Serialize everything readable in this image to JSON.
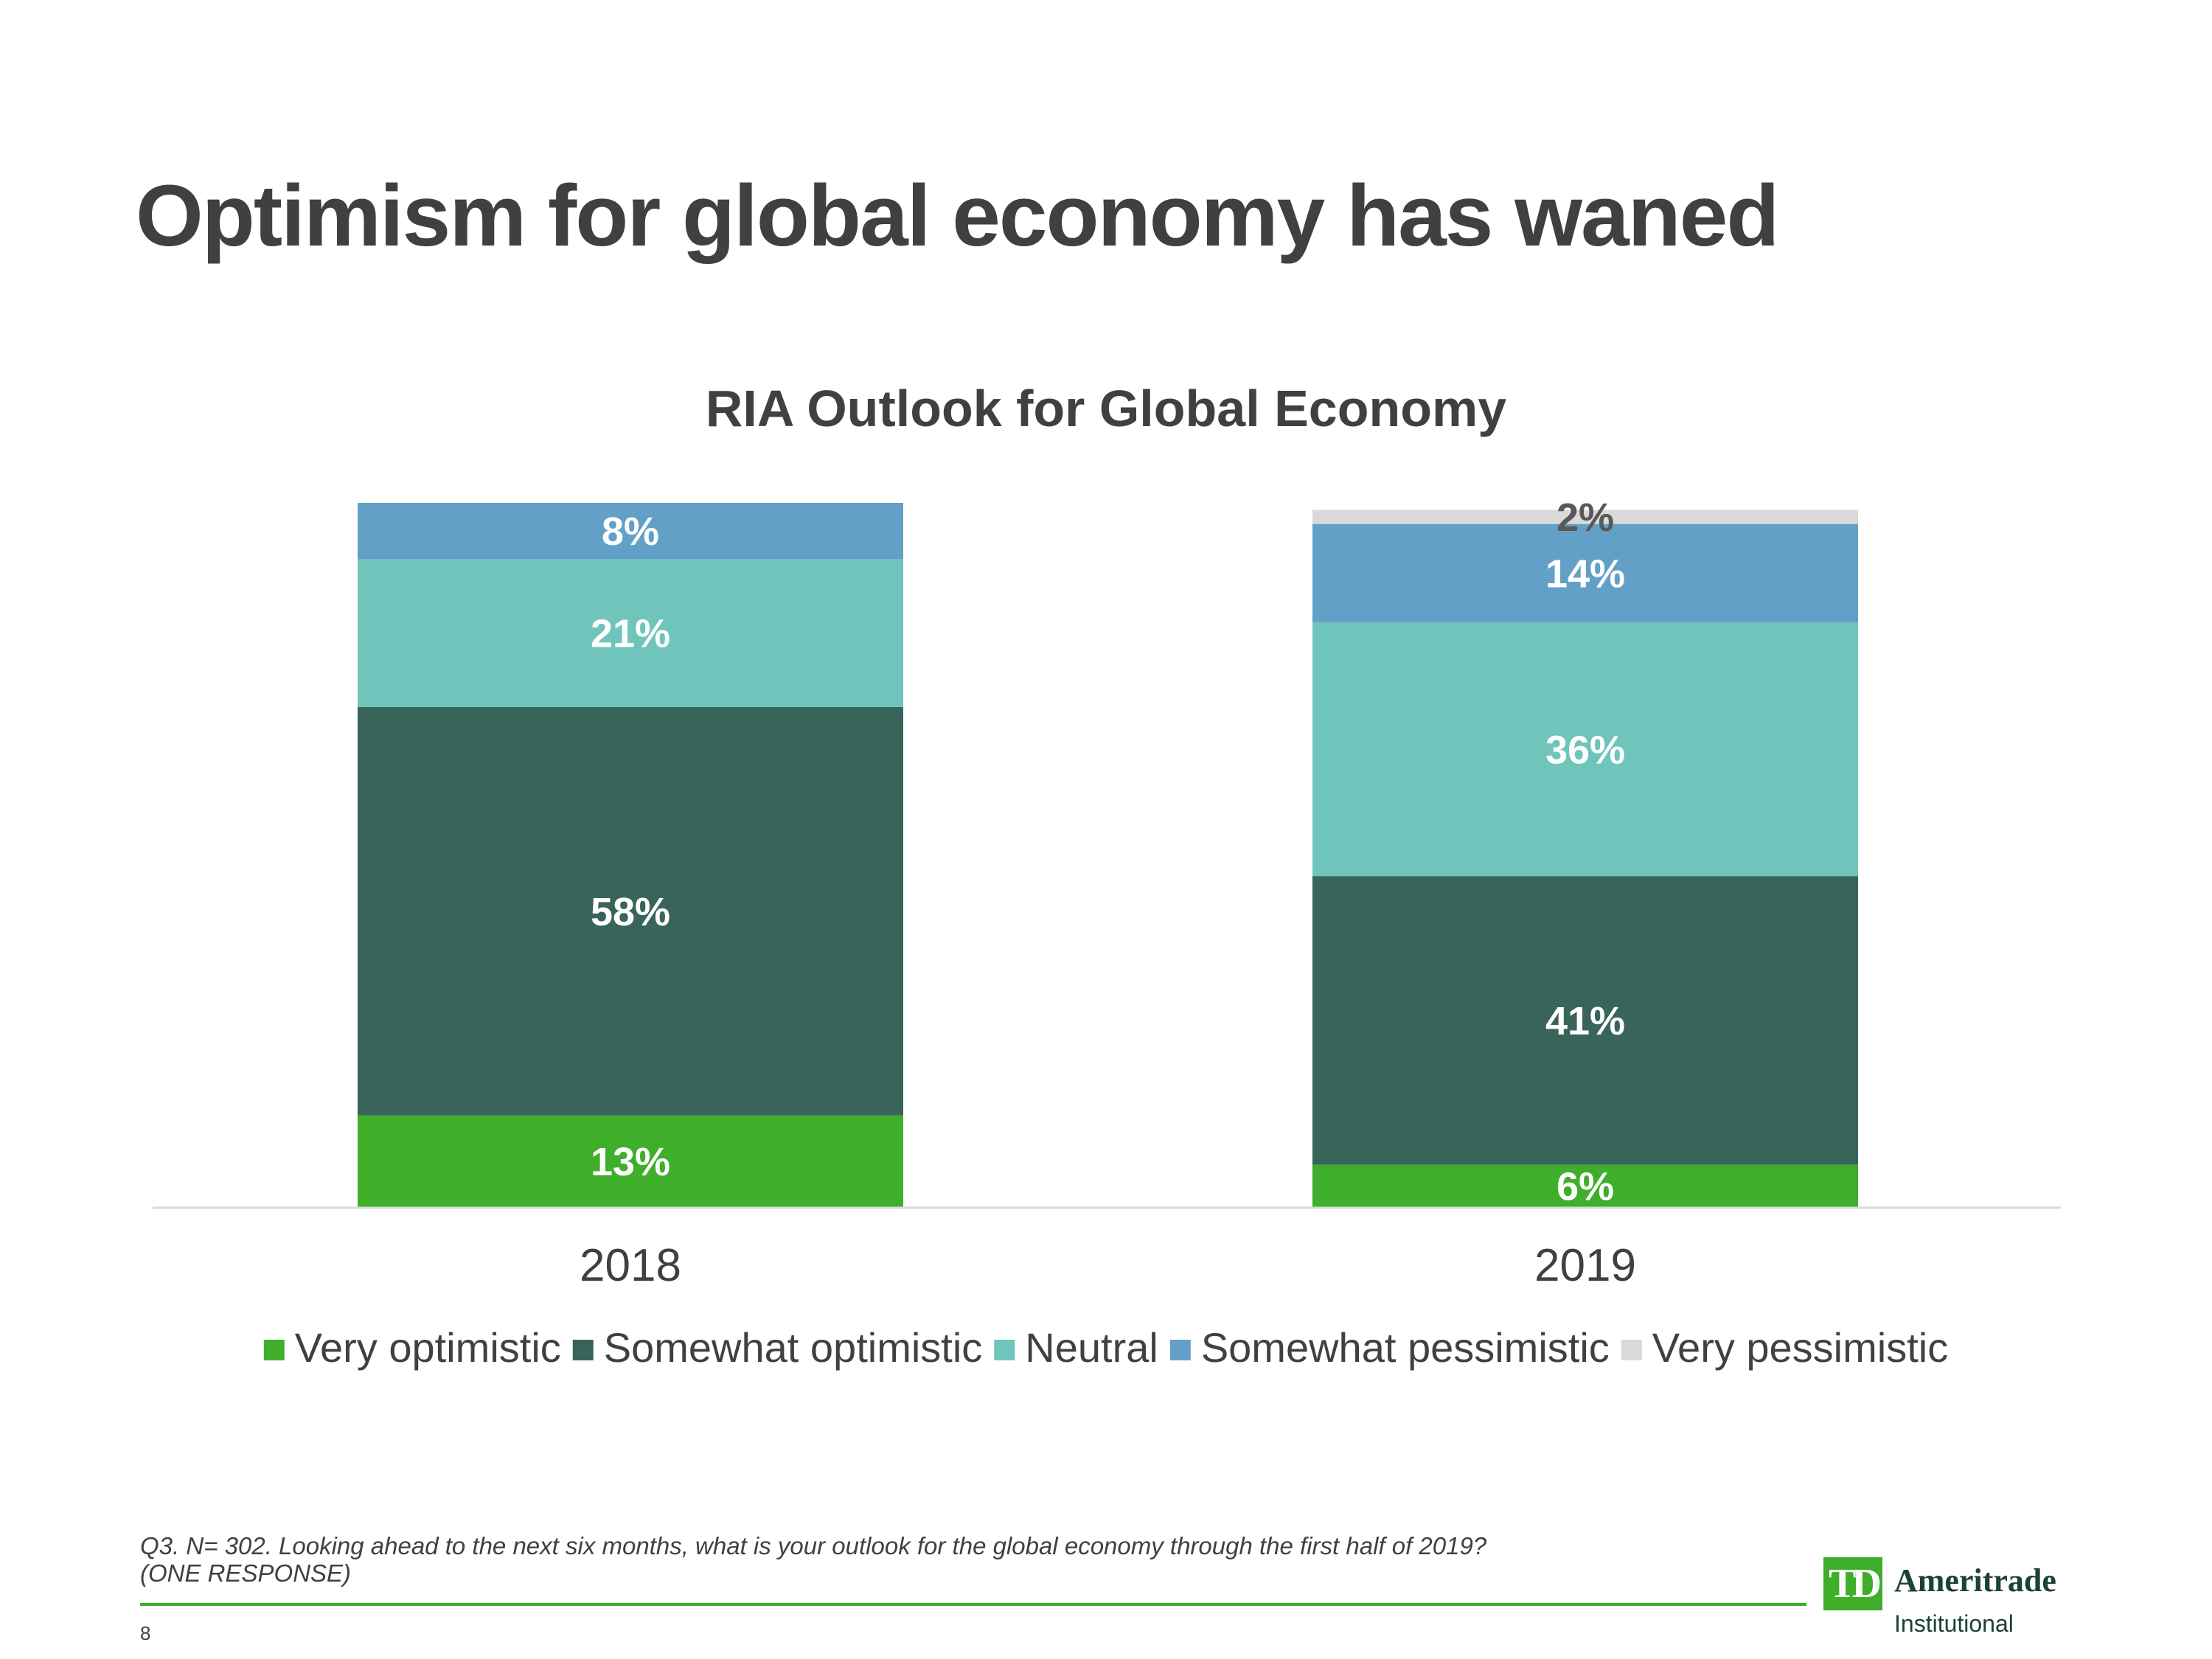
{
  "slide": {
    "title": "Optimism for global economy has waned",
    "footnote": "Q3. N= 302. Looking ahead to the next six months, what is your outlook for the global economy through the first half of 2019?\n(ONE RESPONSE)",
    "page_number": "8"
  },
  "logo": {
    "mark": "TD",
    "name": "Ameritrade",
    "subtitle": "Institutional"
  },
  "chart_data": {
    "type": "bar",
    "stacked": true,
    "title": "RIA Outlook for Global Economy",
    "categories": [
      "2018",
      "2019"
    ],
    "series": [
      {
        "name": "Very optimistic",
        "values": [
          13,
          6
        ],
        "labels": [
          "13%",
          "6%"
        ],
        "color": "#3fae2a",
        "label_color": "#ffffff"
      },
      {
        "name": "Somewhat optimistic",
        "values": [
          58,
          41
        ],
        "labels": [
          "58%",
          "41%"
        ],
        "color": "#38645a",
        "label_color": "#ffffff"
      },
      {
        "name": "Neutral",
        "values": [
          21,
          36
        ],
        "labels": [
          "21%",
          "36%"
        ],
        "color": "#6fc4bb",
        "label_color": "#ffffff"
      },
      {
        "name": "Somewhat pessimistic",
        "values": [
          8,
          14
        ],
        "labels": [
          "8%",
          "14%"
        ],
        "color": "#63a0c7",
        "label_color": "#ffffff"
      },
      {
        "name": "Very pessimistic",
        "values": [
          0,
          2
        ],
        "labels": [
          "",
          "2%"
        ],
        "color": "#d9d9d9",
        "label_color": "#595959"
      }
    ],
    "ylim": [
      0,
      100
    ],
    "legend_position": "bottom",
    "grid": false
  }
}
